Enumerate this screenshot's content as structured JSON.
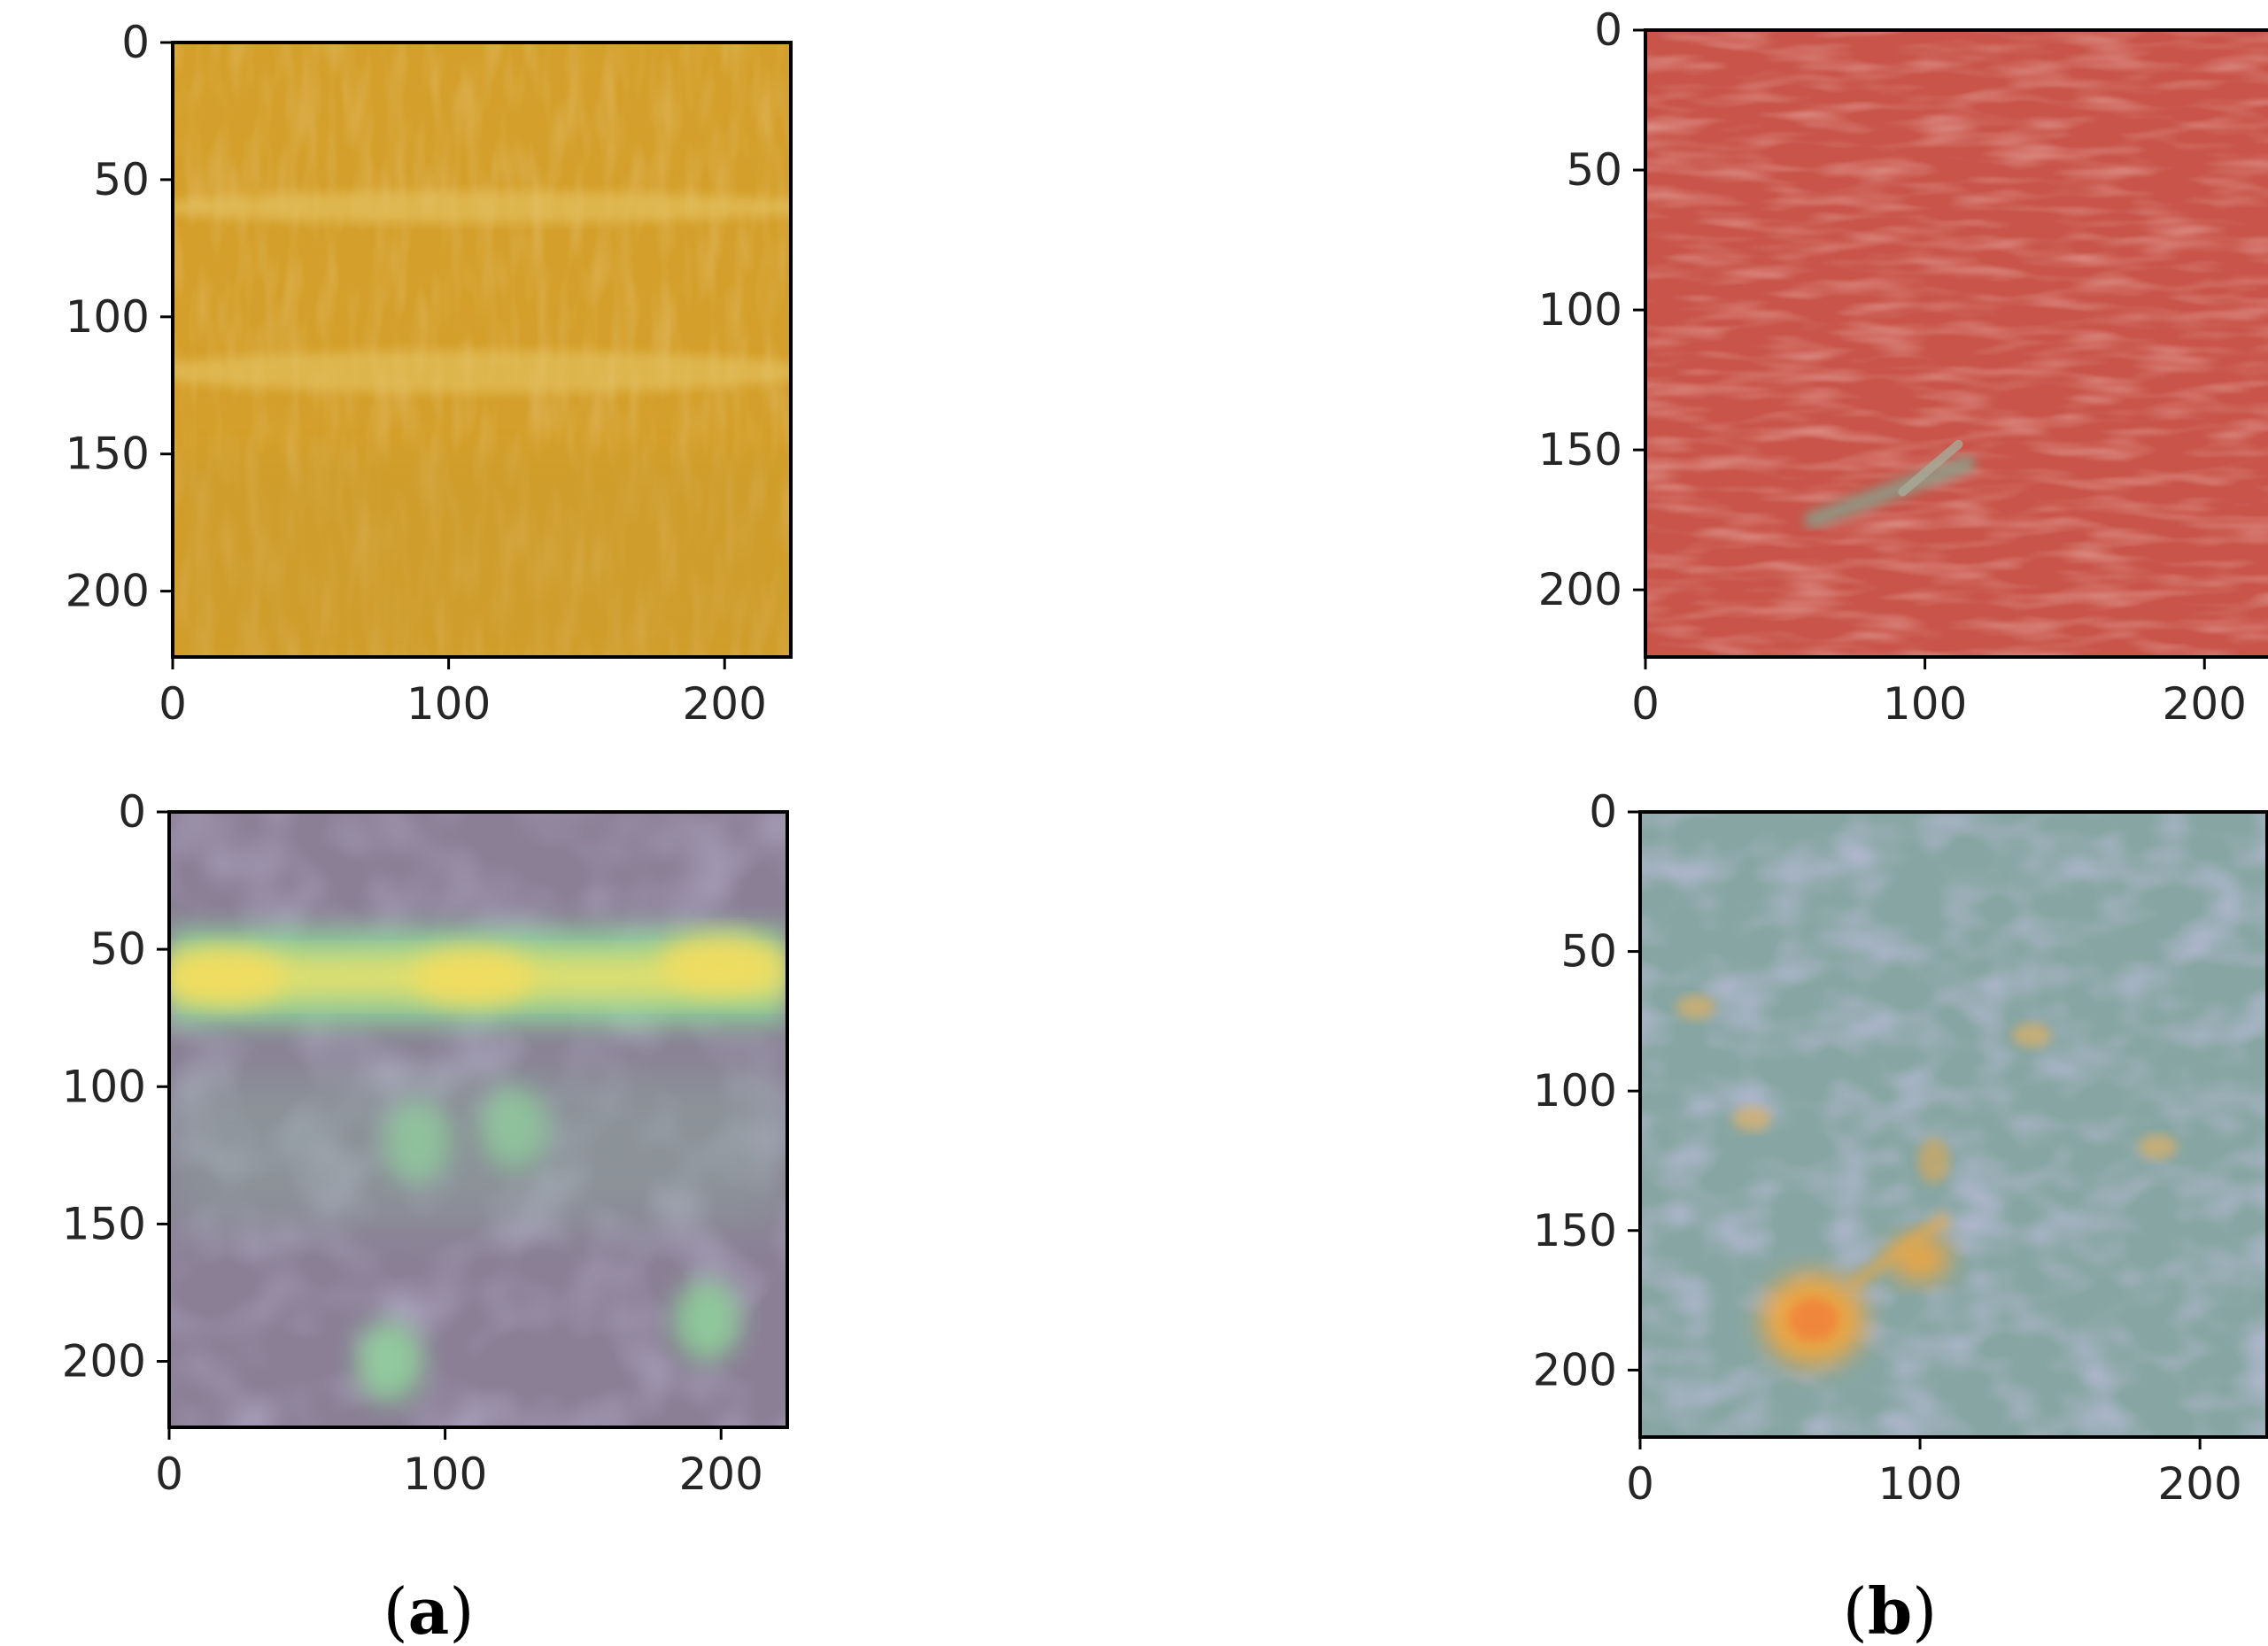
{
  "chart_data": [
    {
      "type": "heatmap",
      "panel": "a",
      "row": "top",
      "content": "original image",
      "xlim": [
        0,
        224
      ],
      "ylim": [
        224,
        0
      ],
      "xticks": [
        0,
        100,
        200
      ],
      "yticks": [
        0,
        50,
        100,
        150,
        200
      ],
      "base_color": "#d49f2a",
      "streak_color": "#e6c86a",
      "bright_bands_y": [
        60,
        120
      ]
    },
    {
      "type": "heatmap",
      "panel": "b",
      "row": "top",
      "content": "original image",
      "xlim": [
        0,
        224
      ],
      "ylim": [
        224,
        0
      ],
      "xticks": [
        0,
        100,
        200
      ],
      "yticks": [
        0,
        50,
        100,
        150,
        200
      ],
      "base_color": "#c8544a",
      "streak_color": "#d98a78",
      "defect_color": "#8f9a85",
      "defect_segment": [
        [
          60,
          175
        ],
        [
          115,
          155
        ]
      ]
    },
    {
      "type": "heatmap",
      "panel": "a",
      "row": "bottom",
      "content": "activation heatmap overlay",
      "xlim": [
        0,
        224
      ],
      "ylim": [
        224,
        0
      ],
      "xticks": [
        0,
        100,
        200
      ],
      "yticks": [
        0,
        50,
        100,
        150,
        200
      ],
      "base_color": "#8a7f95",
      "low_color": "#7f7396",
      "mid_color": "#8fd79a",
      "high_color": "#e8e26a",
      "hot_band_y": 60,
      "hot_spots": [
        [
          20,
          60
        ],
        [
          110,
          60
        ],
        [
          200,
          55
        ]
      ],
      "warm_spots": [
        [
          90,
          120
        ],
        [
          125,
          115
        ],
        [
          195,
          185
        ],
        [
          80,
          200
        ]
      ]
    },
    {
      "type": "heatmap",
      "panel": "b",
      "row": "bottom",
      "content": "activation heatmap overlay",
      "xlim": [
        0,
        224
      ],
      "ylim": [
        224,
        0
      ],
      "xticks": [
        0,
        100,
        200
      ],
      "yticks": [
        0,
        50,
        100,
        150,
        200
      ],
      "base_color": "#87a6a3",
      "low_color": "#8e86b8",
      "high_color": "#f0a63e",
      "hot_spots": [
        [
          62,
          182
        ],
        [
          100,
          160
        ]
      ],
      "warm_spots": [
        [
          20,
          70
        ],
        [
          40,
          110
        ],
        [
          185,
          120
        ],
        [
          140,
          80
        ]
      ]
    }
  ],
  "captions": [
    {
      "open": "(",
      "letter": "a",
      "close": ")"
    },
    {
      "open": "(",
      "letter": "b",
      "close": ")"
    }
  ]
}
